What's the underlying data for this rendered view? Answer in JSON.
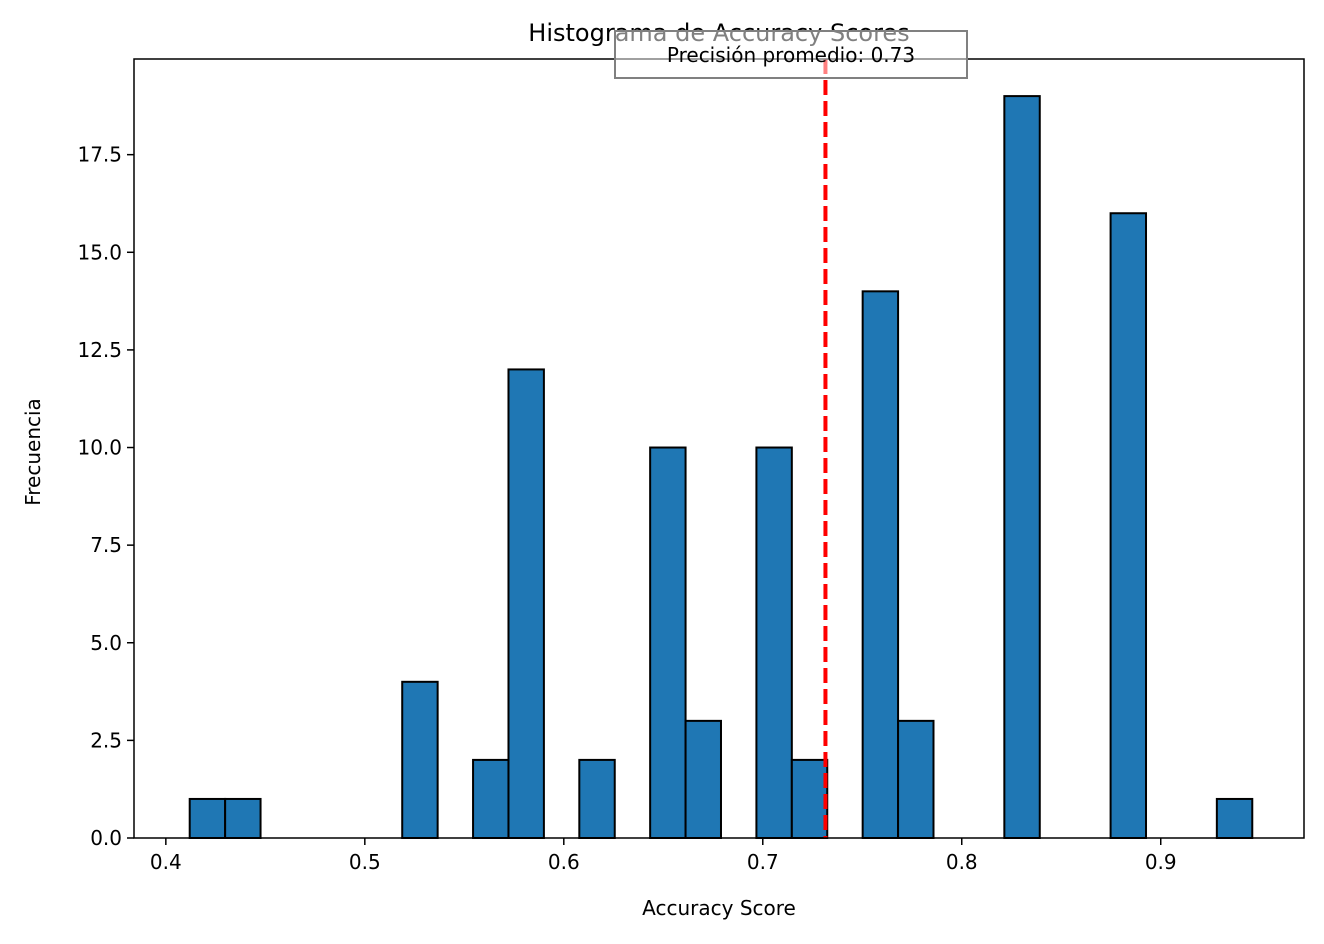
{
  "chart_data": {
    "type": "bar",
    "title": "Histograma de Accuracy Scores",
    "xlabel": "Accuracy Score",
    "ylabel": "Frecuencia",
    "xlim": [
      0.384,
      0.972
    ],
    "ylim": [
      0,
      19.95
    ],
    "bin_width": 0.0178,
    "bins": [
      {
        "x0": 0.412,
        "count": 1
      },
      {
        "x0": 0.4298,
        "count": 1
      },
      {
        "x0": 0.5188,
        "count": 4
      },
      {
        "x0": 0.5544,
        "count": 2
      },
      {
        "x0": 0.5722,
        "count": 12
      },
      {
        "x0": 0.6078,
        "count": 2
      },
      {
        "x0": 0.6434,
        "count": 10
      },
      {
        "x0": 0.6612,
        "count": 3
      },
      {
        "x0": 0.6968,
        "count": 10
      },
      {
        "x0": 0.7146,
        "count": 2
      },
      {
        "x0": 0.7502,
        "count": 14
      },
      {
        "x0": 0.768,
        "count": 3
      },
      {
        "x0": 0.8214,
        "count": 19
      },
      {
        "x0": 0.8748,
        "count": 16
      },
      {
        "x0": 0.9282,
        "count": 1
      }
    ],
    "x_ticks": [
      {
        "value": 0.4,
        "label": "0.4"
      },
      {
        "value": 0.5,
        "label": "0.5"
      },
      {
        "value": 0.6,
        "label": "0.6"
      },
      {
        "value": 0.7,
        "label": "0.7"
      },
      {
        "value": 0.8,
        "label": "0.8"
      },
      {
        "value": 0.9,
        "label": "0.9"
      }
    ],
    "y_ticks": [
      {
        "value": 0,
        "label": "0.0"
      },
      {
        "value": 2.5,
        "label": "2.5"
      },
      {
        "value": 5,
        "label": "5.0"
      },
      {
        "value": 7.5,
        "label": "7.5"
      },
      {
        "value": 10,
        "label": "10.0"
      },
      {
        "value": 12.5,
        "label": "12.5"
      },
      {
        "value": 15,
        "label": "15.0"
      },
      {
        "value": 17.5,
        "label": "17.5"
      }
    ],
    "mean_line": {
      "value": 0.7315
    },
    "annotation": {
      "text": "Precisión promedio: 0.73"
    },
    "grid": false,
    "colors": {
      "bar_fill": "#1f77b4",
      "bar_edge": "#000000",
      "mean_line": "#ff0000",
      "annotation_border": "#808080"
    }
  }
}
